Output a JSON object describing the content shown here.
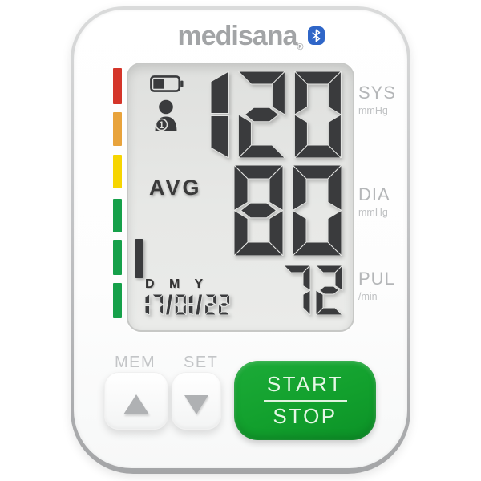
{
  "brand": {
    "logo_text": "medisana",
    "registered_mark": "®",
    "bluetooth_icon": "bluetooth"
  },
  "display": {
    "battery_icon": "battery-half",
    "user_icon": "user-silhouette",
    "user_number": "1",
    "systolic": "120",
    "avg_label": "AVG",
    "diastolic": "80",
    "pulse": "72",
    "date_format_label": "D M Y",
    "date": "17/01/22",
    "risk_indicator": "green-normal-level"
  },
  "side_labels": {
    "sys_label": "SYS",
    "sys_unit": "mmHg",
    "dia_label": "DIA",
    "dia_unit": "mmHg",
    "pul_label": "PUL",
    "pul_unit": "/min"
  },
  "buttons": {
    "mem_label": "MEM",
    "set_label": "SET",
    "start_label": "START",
    "stop_label": "STOP"
  },
  "colors": {
    "digit": "#3a3b3d",
    "button_green": "#12a02d",
    "bluetooth_blue": "#2f66c8",
    "scale": [
      "#d4352a",
      "#e8a33c",
      "#f6d501",
      "#16a04a",
      "#16a04a",
      "#16a04a"
    ]
  }
}
